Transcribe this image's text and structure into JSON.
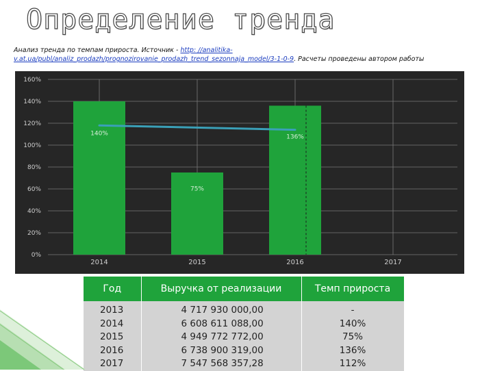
{
  "slide": {
    "title": "Определение тренда",
    "caption_prefix": "Анализ тренда по темпам прироста. Источник - ",
    "caption_link_1": "http: //analitika-",
    "caption_link_2": "v.at.ua/publ/analiz_prodazh/prognozirovanie_prodazh_trend_sezonnaja_model/3-1-0-9",
    "caption_suffix": ". Расчеты проведены автором работы"
  },
  "chart_data": {
    "type": "bar",
    "categories": [
      "2014",
      "2015",
      "2016",
      "2017"
    ],
    "series": [
      {
        "values": [
          140,
          75,
          136,
          null
        ],
        "labels": [
          "140%",
          "75%",
          "136%",
          ""
        ],
        "color": "#1fa33b"
      },
      {
        "type": "line",
        "x": [
          "2014",
          "2016"
        ],
        "values": [
          118,
          114
        ],
        "color": "#3aa0b8"
      }
    ],
    "y_ticks": [
      "160%",
      "140%",
      "120%",
      "100%",
      "80%",
      "60%",
      "40%",
      "20%",
      "0%"
    ],
    "ylim": [
      0,
      160
    ],
    "grid": true,
    "colors": {
      "background": "#262626",
      "bar": "#1fa33b",
      "trend": "#3aa0b8",
      "grid": "#7a7a7a",
      "text": "#cfcfcf"
    }
  },
  "table": {
    "headers": [
      "Год",
      "Выручка от реализации",
      "Темп прироста"
    ],
    "rows": [
      [
        "2013",
        "4 717 930 000,00",
        "-"
      ],
      [
        "2014",
        "6 608 611 088,00",
        "140%"
      ],
      [
        "2015",
        "4 949 772 772,00",
        "75%"
      ],
      [
        "2016",
        "6 738 900 319,00",
        "136%"
      ],
      [
        "2017",
        "7 547 568 357,28",
        "112%"
      ]
    ]
  },
  "colors": {
    "accent": "#1fa33b",
    "table_body": "#d3d3d3"
  }
}
